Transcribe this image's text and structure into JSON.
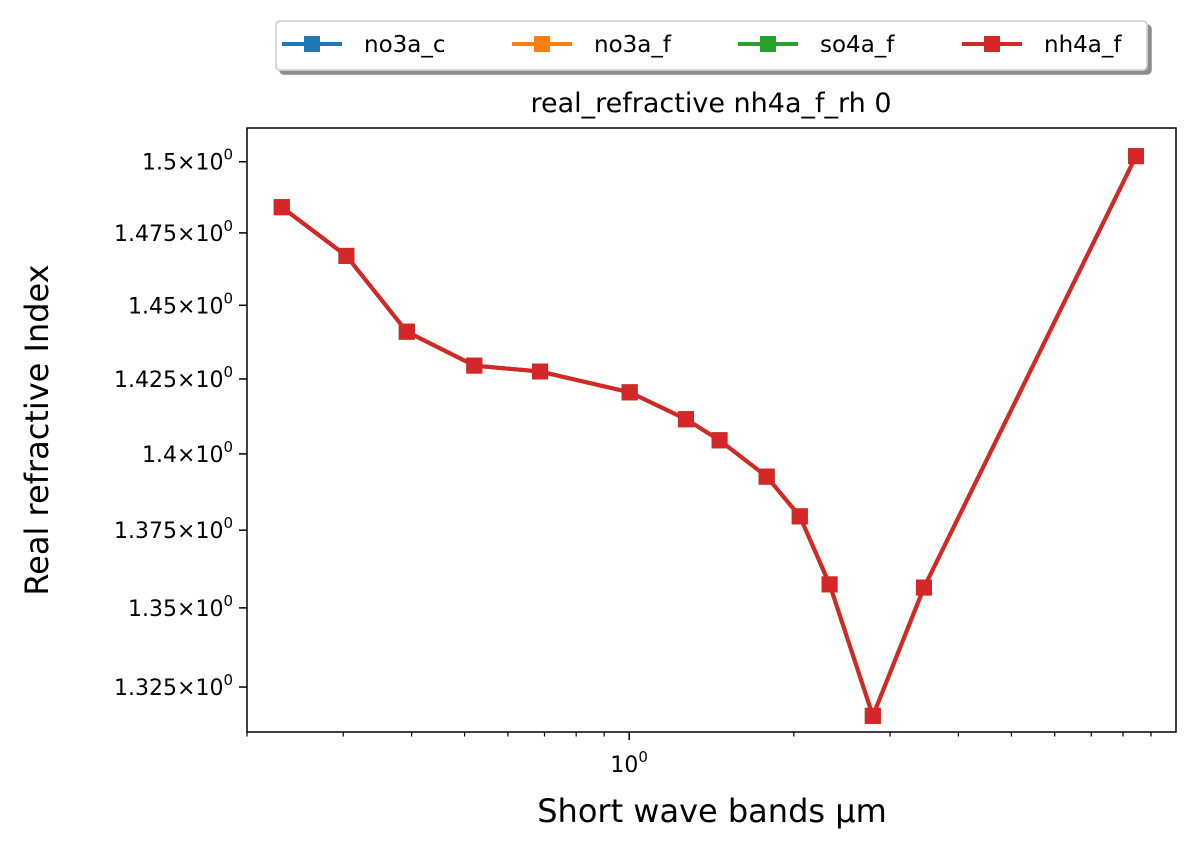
{
  "chart_data": {
    "type": "line",
    "title": "real_refractive nh4a_f_rh 0",
    "xlabel": "Short wave bands μm",
    "ylabel": "Real refractive Index",
    "x_scale": "log",
    "y_scale": "log",
    "xlim": [
      0.2,
      10.0
    ],
    "ylim": [
      1.311,
      1.512
    ],
    "x_ticks": [
      {
        "value": 1.0,
        "base": "10",
        "exp": "0"
      }
    ],
    "y_ticks": [
      {
        "value": 1.325,
        "mant": "1.325",
        "base": "10",
        "exp": "0"
      },
      {
        "value": 1.35,
        "mant": "1.35",
        "base": "10",
        "exp": "0"
      },
      {
        "value": 1.375,
        "mant": "1.375",
        "base": "10",
        "exp": "0"
      },
      {
        "value": 1.4,
        "mant": "1.4",
        "base": "10",
        "exp": "0"
      },
      {
        "value": 1.425,
        "mant": "1.425",
        "base": "10",
        "exp": "0"
      },
      {
        "value": 1.45,
        "mant": "1.45",
        "base": "10",
        "exp": "0"
      },
      {
        "value": 1.475,
        "mant": "1.475",
        "base": "10",
        "exp": "0"
      },
      {
        "value": 1.5,
        "mant": "1.5",
        "base": "10",
        "exp": "0"
      }
    ],
    "grid": false,
    "legend_position": "top-center outside",
    "series": [
      {
        "name": "no3a_c",
        "color": "#1f77b4",
        "marker": "square",
        "x": [
          0.2315,
          0.304,
          0.392,
          0.521,
          0.687,
          1.002,
          1.27,
          1.463,
          1.784,
          2.051,
          2.325,
          2.79,
          3.46,
          8.45
        ],
        "y": [
          1.484,
          1.467,
          1.441,
          1.4295,
          1.4275,
          1.4205,
          1.4115,
          1.4045,
          1.3925,
          1.3795,
          1.3575,
          1.316,
          1.3565,
          1.502
        ]
      },
      {
        "name": "no3a_f",
        "color": "#ff7f0e",
        "marker": "square",
        "x": [
          0.2315,
          0.304,
          0.392,
          0.521,
          0.687,
          1.002,
          1.27,
          1.463,
          1.784,
          2.051,
          2.325,
          2.79,
          3.46,
          8.45
        ],
        "y": [
          1.484,
          1.467,
          1.441,
          1.4295,
          1.4275,
          1.4205,
          1.4115,
          1.4045,
          1.3925,
          1.3795,
          1.3575,
          1.316,
          1.3565,
          1.502
        ]
      },
      {
        "name": "so4a_f",
        "color": "#2ca02c",
        "marker": "square",
        "x": [
          0.2315,
          0.304,
          0.392,
          0.521,
          0.687,
          1.002,
          1.27,
          1.463,
          1.784,
          2.051,
          2.325,
          2.79,
          3.46,
          8.45
        ],
        "y": [
          1.484,
          1.467,
          1.441,
          1.4295,
          1.4275,
          1.4205,
          1.4115,
          1.4045,
          1.3925,
          1.3795,
          1.3575,
          1.316,
          1.3565,
          1.502
        ]
      },
      {
        "name": "nh4a_f",
        "color": "#d62728",
        "marker": "square",
        "x": [
          0.2315,
          0.304,
          0.392,
          0.521,
          0.687,
          1.002,
          1.27,
          1.463,
          1.784,
          2.051,
          2.325,
          2.79,
          3.46,
          8.45
        ],
        "y": [
          1.484,
          1.467,
          1.441,
          1.4295,
          1.4275,
          1.4205,
          1.4115,
          1.4045,
          1.3925,
          1.3795,
          1.3575,
          1.316,
          1.3565,
          1.502
        ]
      }
    ]
  }
}
